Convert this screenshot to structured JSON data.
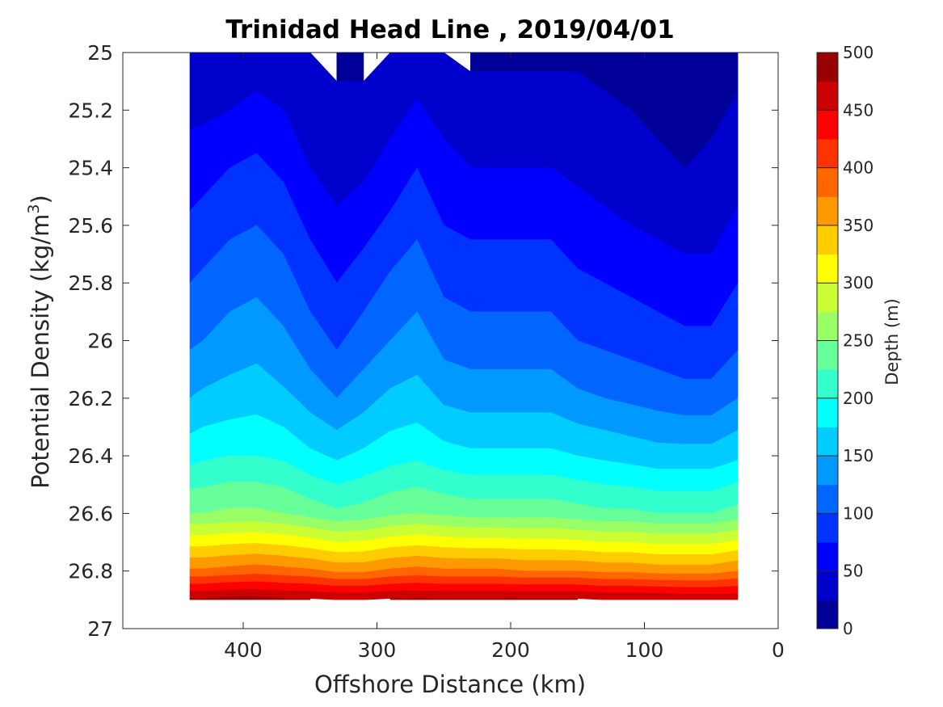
{
  "chart_data": {
    "type": "heatmap",
    "subtype": "filled-contour",
    "title": "Trinidad Head Line , 2019/04/01",
    "xlabel": "Offshore Distance (km)",
    "ylabel_main": "Potential Density (kg/m",
    "ylabel_sup": "3",
    "ylabel_close": ")",
    "x_ticks": [
      "400",
      "300",
      "200",
      "100",
      "0"
    ],
    "y_ticks": [
      "25",
      "25.2",
      "25.4",
      "25.6",
      "25.8",
      "26",
      "26.2",
      "26.4",
      "26.6",
      "26.8",
      "27"
    ],
    "xlim": [
      490,
      0
    ],
    "x_reversed": true,
    "ylim": [
      25,
      27
    ],
    "y_reversed": true,
    "grid": false,
    "colormap": "jet",
    "colorbar": {
      "label": "Depth (m)",
      "ticks": [
        "0",
        "50",
        "100",
        "150",
        "200",
        "250",
        "300",
        "350",
        "400",
        "450",
        "500"
      ],
      "range": [
        0,
        500
      ],
      "levels": 20
    },
    "x": [
      440,
      430,
      410,
      390,
      370,
      350,
      330,
      310,
      290,
      270,
      250,
      230,
      210,
      190,
      170,
      150,
      130,
      110,
      90,
      70,
      50,
      30
    ],
    "isopycnals": [
      {
        "sigma": 25.0,
        "depth_m": [
          35,
          35,
          30,
          30,
          30,
          25,
          20,
          20,
          25,
          30,
          25,
          20,
          20,
          20,
          20,
          20,
          15,
          15,
          10,
          10,
          10,
          15
        ]
      },
      {
        "sigma": 25.2,
        "depth_m": [
          45,
          45,
          50,
          60,
          50,
          40,
          30,
          30,
          40,
          55,
          45,
          35,
          35,
          35,
          35,
          35,
          30,
          25,
          20,
          15,
          20,
          30
        ]
      },
      {
        "sigma": 25.4,
        "depth_m": [
          60,
          65,
          75,
          80,
          70,
          50,
          40,
          45,
          60,
          75,
          55,
          50,
          50,
          50,
          50,
          45,
          40,
          35,
          30,
          25,
          30,
          40
        ]
      },
      {
        "sigma": 25.6,
        "depth_m": [
          80,
          85,
          95,
          100,
          90,
          70,
          55,
          65,
          80,
          95,
          75,
          70,
          70,
          70,
          70,
          60,
          55,
          50,
          45,
          40,
          40,
          55
        ]
      },
      {
        "sigma": 25.8,
        "depth_m": [
          100,
          105,
          115,
          120,
          110,
          90,
          75,
          90,
          105,
          115,
          95,
          90,
          90,
          90,
          90,
          80,
          75,
          70,
          65,
          60,
          60,
          75
        ]
      },
      {
        "sigma": 26.0,
        "depth_m": [
          120,
          125,
          135,
          140,
          130,
          110,
          95,
          110,
          125,
          135,
          115,
          110,
          110,
          110,
          110,
          100,
          95,
          90,
          85,
          80,
          80,
          95
        ]
      },
      {
        "sigma": 26.2,
        "depth_m": [
          150,
          155,
          160,
          165,
          155,
          140,
          125,
          140,
          155,
          160,
          145,
          140,
          140,
          140,
          140,
          130,
          125,
          120,
          115,
          110,
          110,
          125
        ]
      },
      {
        "sigma": 26.4,
        "depth_m": [
          190,
          195,
          200,
          200,
          195,
          180,
          170,
          180,
          190,
          195,
          185,
          180,
          180,
          180,
          180,
          175,
          170,
          165,
          160,
          160,
          160,
          170
        ]
      },
      {
        "sigma": 26.6,
        "depth_m": [
          250,
          250,
          255,
          255,
          250,
          240,
          230,
          235,
          245,
          250,
          245,
          240,
          240,
          240,
          240,
          235,
          230,
          230,
          225,
          225,
          225,
          235
        ]
      },
      {
        "sigma": 26.8,
        "depth_m": [
          380,
          380,
          385,
          390,
          385,
          380,
          370,
          370,
          380,
          385,
          380,
          380,
          380,
          375,
          375,
          375,
          370,
          370,
          365,
          365,
          365,
          375
        ]
      },
      {
        "sigma": 26.9,
        "depth_m": [
          480,
          480,
          485,
          485,
          480,
          480,
          475,
          475,
          480,
          480,
          480,
          480,
          480,
          480,
          480,
          480,
          475,
          475,
          475,
          470,
          470,
          470
        ]
      }
    ]
  }
}
